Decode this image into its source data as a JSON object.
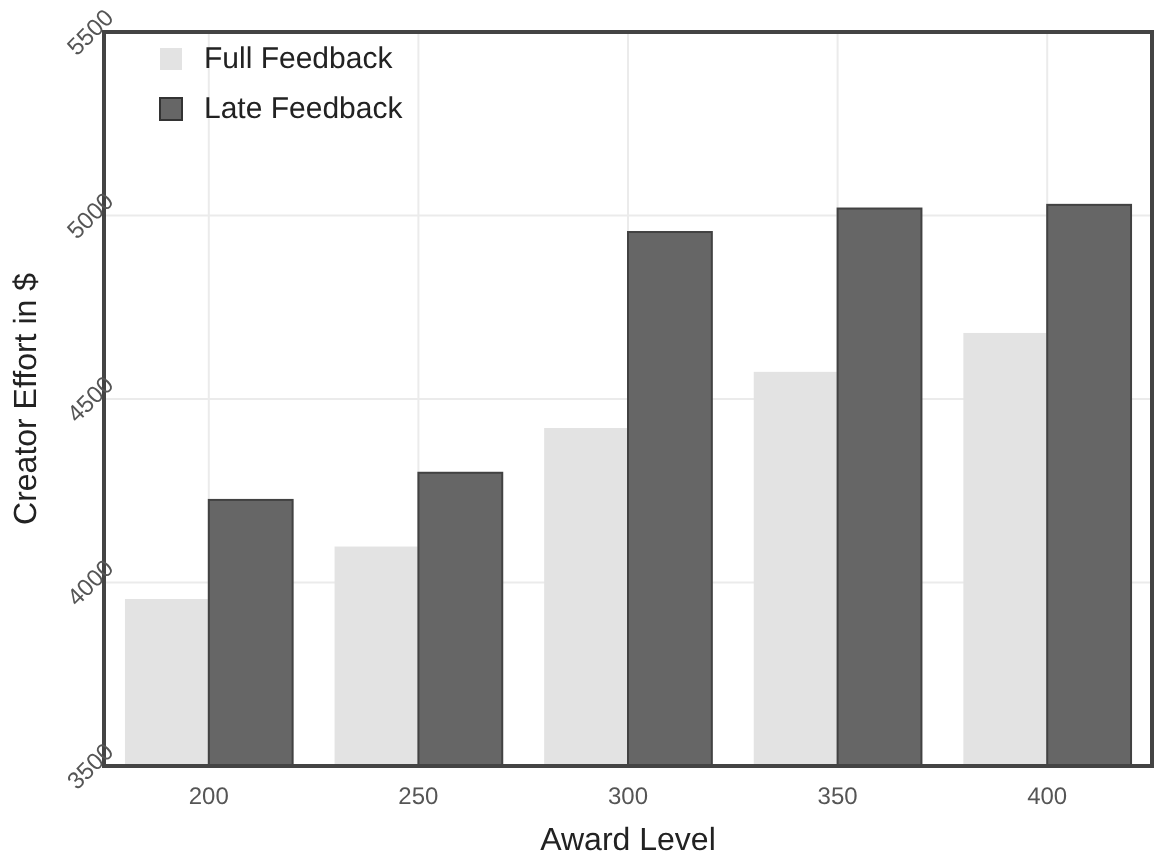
{
  "chart_data": {
    "type": "bar",
    "xlabel": "Award Level",
    "ylabel": "Creator Effort in $",
    "categories": [
      "200",
      "250",
      "300",
      "350",
      "400"
    ],
    "series": [
      {
        "name": "Full Feedback",
        "color": "#e3e3e3",
        "values": [
          3955,
          4098,
          4421,
          4574,
          4680
        ]
      },
      {
        "name": "Late Feedback",
        "color": "#666666",
        "values": [
          4225,
          4299,
          4955,
          5019,
          5029
        ]
      }
    ],
    "ylim": [
      3500,
      5500
    ],
    "yticks": [
      3500,
      4000,
      4500,
      5000,
      5500
    ],
    "grid": true,
    "legend": "top left"
  }
}
